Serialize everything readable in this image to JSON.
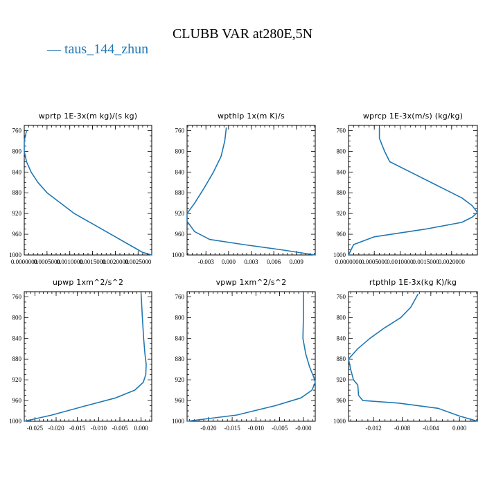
{
  "figure": {
    "title": "CLUBB VAR at280E,5N",
    "legend": {
      "label": "taus_144_zhun",
      "marker": "—"
    },
    "colors": {
      "series": "#1f77b4",
      "axes": "#000000",
      "background": "#ffffff"
    }
  },
  "chart_data": [
    {
      "type": "line",
      "title": "wprtp  1E-3x(m kg)/(s kg)",
      "series_name": "taus_144_zhun",
      "xlim": [
        0.0,
        0.0028
      ],
      "ylim": [
        1000,
        750
      ],
      "xticks": [
        0.0,
        0.0005,
        0.001,
        0.0015,
        0.002,
        0.0025
      ],
      "xtick_labels": [
        "0.0000000",
        "0.0005000",
        "0.0010000",
        "0.0015000",
        "0.0020000",
        "0.0025000"
      ],
      "yticks": [
        760,
        800,
        840,
        880,
        920,
        960,
        1000
      ],
      "ytick_labels": [
        "760",
        "800",
        "840",
        "880",
        "920",
        "960",
        "1000"
      ],
      "x": [
        5e-05,
        0.0,
        0.0,
        5e-05,
        0.00015,
        0.0003,
        0.0005,
        0.0008,
        0.0011,
        0.0015,
        0.0019,
        0.0023,
        0.0025,
        0.0026,
        0.0028
      ],
      "y": [
        760,
        780,
        800,
        820,
        840,
        860,
        880,
        900,
        920,
        940,
        960,
        980,
        990,
        995,
        1000
      ]
    },
    {
      "type": "line",
      "title": "wpthlp  1x(m K)/s",
      "series_name": "taus_144_zhun",
      "xlim": [
        -0.0055,
        0.0115
      ],
      "ylim": [
        1000,
        750
      ],
      "xticks": [
        -0.003,
        0.0,
        0.003,
        0.006,
        0.009
      ],
      "xtick_labels": [
        "-0.003",
        "0.000",
        "0.003",
        "0.006",
        "0.009"
      ],
      "yticks": [
        760,
        800,
        840,
        880,
        920,
        960,
        1000
      ],
      "ytick_labels": [
        "760",
        "800",
        "840",
        "880",
        "920",
        "960",
        "1000"
      ],
      "x": [
        -0.0003,
        -0.0005,
        -0.001,
        -0.002,
        -0.0032,
        -0.0045,
        -0.0055,
        -0.0055,
        -0.0045,
        -0.0025,
        0.002,
        0.007,
        0.0115
      ],
      "y": [
        755,
        780,
        810,
        840,
        870,
        900,
        920,
        935,
        955,
        970,
        980,
        990,
        1000
      ]
    },
    {
      "type": "line",
      "title": "wprcp  1E-3x(m/s) (kg/kg)",
      "series_name": "taus_144_zhun",
      "xlim": [
        0.0,
        0.0025
      ],
      "ylim": [
        1000,
        750
      ],
      "xticks": [
        0.0,
        0.0005,
        0.001,
        0.0015,
        0.002
      ],
      "xtick_labels": [
        "0.0000000",
        "0.0005000",
        "0.0010000",
        "0.0015000",
        "0.0020000"
      ],
      "yticks": [
        760,
        800,
        840,
        880,
        920,
        960,
        1000
      ],
      "ytick_labels": [
        "760",
        "800",
        "840",
        "880",
        "920",
        "960",
        "1000"
      ],
      "x": [
        0.0006,
        0.0006,
        0.0007,
        0.0008,
        0.0012,
        0.0017,
        0.0022,
        0.0024,
        0.0025,
        0.0024,
        0.0022,
        0.0015,
        0.0005,
        0.0001,
        0.0
      ],
      "y": [
        755,
        775,
        800,
        820,
        840,
        865,
        890,
        905,
        918,
        927,
        937,
        950,
        965,
        980,
        1000
      ]
    },
    {
      "type": "line",
      "title": "upwp  1xm^2/s^2",
      "series_name": "taus_144_zhun",
      "xlim": [
        -0.0275,
        0.0025
      ],
      "ylim": [
        1000,
        750
      ],
      "xticks": [
        -0.025,
        -0.02,
        -0.015,
        -0.01,
        -0.005,
        0.0
      ],
      "xtick_labels": [
        "-0.025",
        "-0.020",
        "-0.015",
        "-0.010",
        "-0.005",
        "0.000"
      ],
      "yticks": [
        760,
        800,
        840,
        880,
        920,
        960,
        1000
      ],
      "ytick_labels": [
        "760",
        "800",
        "840",
        "880",
        "920",
        "960",
        "1000"
      ],
      "x": [
        0.0,
        0.0003,
        0.0006,
        0.0009,
        0.0012,
        0.0011,
        0.0005,
        -0.0015,
        -0.006,
        -0.013,
        -0.021,
        -0.0275
      ],
      "y": [
        755,
        800,
        840,
        870,
        890,
        910,
        925,
        940,
        955,
        970,
        988,
        1000
      ]
    },
    {
      "type": "line",
      "title": "vpwp  1xm^2/s^2",
      "series_name": "taus_144_zhun",
      "xlim": [
        -0.0245,
        0.0025
      ],
      "ylim": [
        1000,
        750
      ],
      "xticks": [
        -0.02,
        -0.015,
        -0.01,
        -0.005,
        0.0
      ],
      "xtick_labels": [
        "-0.020",
        "-0.015",
        "-0.010",
        "-0.005",
        "-0.000"
      ],
      "yticks": [
        760,
        800,
        840,
        880,
        920,
        960,
        1000
      ],
      "ytick_labels": [
        "760",
        "800",
        "840",
        "880",
        "920",
        "960",
        "1000"
      ],
      "x": [
        0.0,
        0.0,
        -0.0001,
        0.0005,
        0.0013,
        0.0022,
        0.0025,
        0.0018,
        -0.0005,
        -0.006,
        -0.014,
        -0.0245
      ],
      "y": [
        755,
        800,
        840,
        870,
        895,
        915,
        925,
        940,
        955,
        970,
        988,
        1000
      ]
    },
    {
      "type": "line",
      "title": "rtpthlp  1E-3x(kg K)/kg",
      "series_name": "taus_144_zhun",
      "xlim": [
        -0.0155,
        0.0025
      ],
      "ylim": [
        1000,
        750
      ],
      "xticks": [
        -0.012,
        -0.008,
        -0.004,
        0.0
      ],
      "xtick_labels": [
        "-0.012",
        "-0.008",
        "-0.004",
        "0.000"
      ],
      "yticks": [
        760,
        800,
        840,
        880,
        920,
        960,
        1000
      ],
      "ytick_labels": [
        "760",
        "800",
        "840",
        "880",
        "920",
        "960",
        "1000"
      ],
      "x": [
        -0.0058,
        -0.0068,
        -0.0082,
        -0.0105,
        -0.0125,
        -0.0142,
        -0.0155,
        -0.0152,
        -0.0148,
        -0.0142,
        -0.0141,
        -0.0135,
        -0.0085,
        -0.003,
        0.0,
        0.0018,
        0.0025
      ],
      "y": [
        755,
        780,
        800,
        820,
        840,
        860,
        880,
        900,
        920,
        930,
        950,
        960,
        965,
        975,
        990,
        997,
        1000
      ]
    }
  ]
}
